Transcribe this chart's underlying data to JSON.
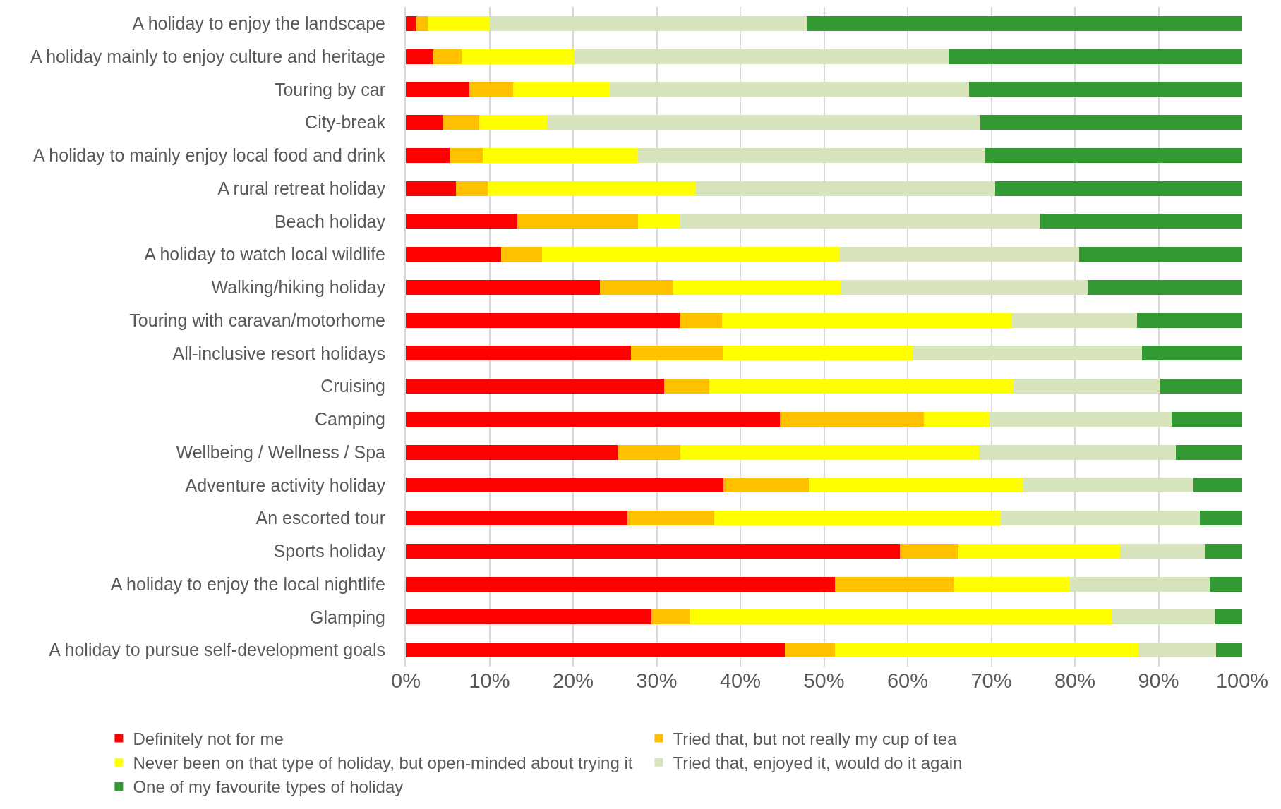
{
  "chart_data": {
    "type": "bar",
    "orientation": "horizontal",
    "stacked": true,
    "categories": [
      "A holiday to enjoy the landscape",
      "A holiday mainly to enjoy culture and heritage",
      "Touring by car",
      "City-break",
      "A holiday to mainly enjoy local food and drink",
      "A rural retreat holiday",
      "Beach holiday",
      "A holiday to watch local wildlife",
      "Walking/hiking holiday",
      "Touring with caravan/motorhome",
      "All-inclusive resort holidays",
      "Cruising",
      "Camping",
      "Wellbeing / Wellness / Spa",
      "Adventure activity holiday",
      "An escorted tour",
      "Sports holiday",
      "A holiday to enjoy the local nightlife",
      "Glamping",
      "A holiday to pursue self-development goals"
    ],
    "series": [
      {
        "name": "Definitely not for me",
        "color": "#ff0000",
        "values": [
          1.3,
          3.3,
          7.6,
          4.5,
          5.2,
          6.0,
          13.3,
          11.4,
          23.2,
          32.7,
          26.9,
          30.9,
          44.7,
          25.3,
          38.0,
          26.5,
          59.1,
          51.3,
          29.4,
          45.3
        ]
      },
      {
        "name": "Tried that, but not really my cup of tea",
        "color": "#ffc000",
        "values": [
          1.3,
          3.4,
          5.2,
          4.3,
          4.0,
          3.8,
          14.5,
          4.9,
          8.8,
          5.1,
          11.0,
          5.4,
          17.2,
          7.5,
          10.2,
          10.4,
          7.0,
          14.2,
          4.5,
          6.0
        ]
      },
      {
        "name": "Never been on that type of holiday, but open-minded about trying it",
        "color": "#ffff00",
        "values": [
          7.4,
          13.4,
          11.6,
          8.1,
          18.6,
          24.8,
          5.0,
          35.6,
          20.1,
          34.6,
          22.7,
          36.4,
          7.8,
          35.7,
          25.6,
          34.2,
          19.3,
          13.9,
          50.6,
          36.3
        ]
      },
      {
        "name": "Tried that, enjoyed it, would do it again",
        "color": "#d8e4bc",
        "values": [
          37.9,
          44.8,
          42.9,
          51.8,
          41.5,
          35.9,
          43.0,
          28.6,
          29.4,
          15.0,
          27.4,
          17.5,
          21.9,
          23.6,
          20.4,
          23.8,
          10.1,
          16.7,
          12.3,
          9.3
        ]
      },
      {
        "name": "One of my favourite types of holiday",
        "color": "#339933",
        "values": [
          52.1,
          35.1,
          32.7,
          31.3,
          30.7,
          29.5,
          24.2,
          19.5,
          18.5,
          12.6,
          12.0,
          9.8,
          8.4,
          7.9,
          5.8,
          5.1,
          4.5,
          3.9,
          3.2,
          3.1
        ]
      }
    ],
    "xlim": [
      0,
      100
    ],
    "xticks": [
      {
        "value": 0,
        "label": "0%"
      },
      {
        "value": 10,
        "label": "10%"
      },
      {
        "value": 20,
        "label": "20%"
      },
      {
        "value": 30,
        "label": "30%"
      },
      {
        "value": 40,
        "label": "40%"
      },
      {
        "value": 50,
        "label": "50%"
      },
      {
        "value": 60,
        "label": "60%"
      },
      {
        "value": 70,
        "label": "70%"
      },
      {
        "value": 80,
        "label": "80%"
      },
      {
        "value": 90,
        "label": "90%"
      },
      {
        "value": 100,
        "label": "100%"
      }
    ],
    "grid": "x",
    "legend": "bottom"
  }
}
